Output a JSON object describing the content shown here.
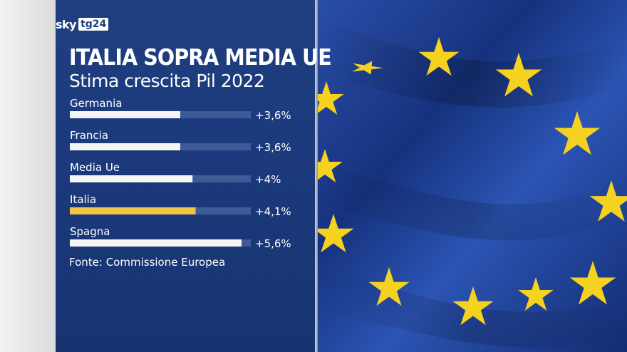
{
  "brand": {
    "sky": "sky",
    "tg": "tg24"
  },
  "chart_data": {
    "type": "bar",
    "orientation": "horizontal",
    "title": "ITALIA SOPRA MEDIA UE",
    "subtitle": "Stima crescita Pil 2022",
    "categories": [
      "Germania",
      "Francia",
      "Media Ue",
      "Italia",
      "Spagna"
    ],
    "values": [
      3.6,
      3.6,
      4.0,
      4.1,
      5.6
    ],
    "value_labels": [
      "+3,6%",
      "+3,6%",
      "+4%",
      "+4,1%",
      "+5,6%"
    ],
    "xlim": [
      0,
      5.9
    ],
    "grid": false,
    "highlight": "Italia",
    "colors": {
      "bar": "#f5f5f5",
      "highlight": "#f1c444",
      "track": "#3e5a97",
      "panel": "#1e3d7f",
      "flag": "#1b3a8c",
      "star": "#f4d21f"
    },
    "source": "Fonte: Commissione Europea"
  }
}
